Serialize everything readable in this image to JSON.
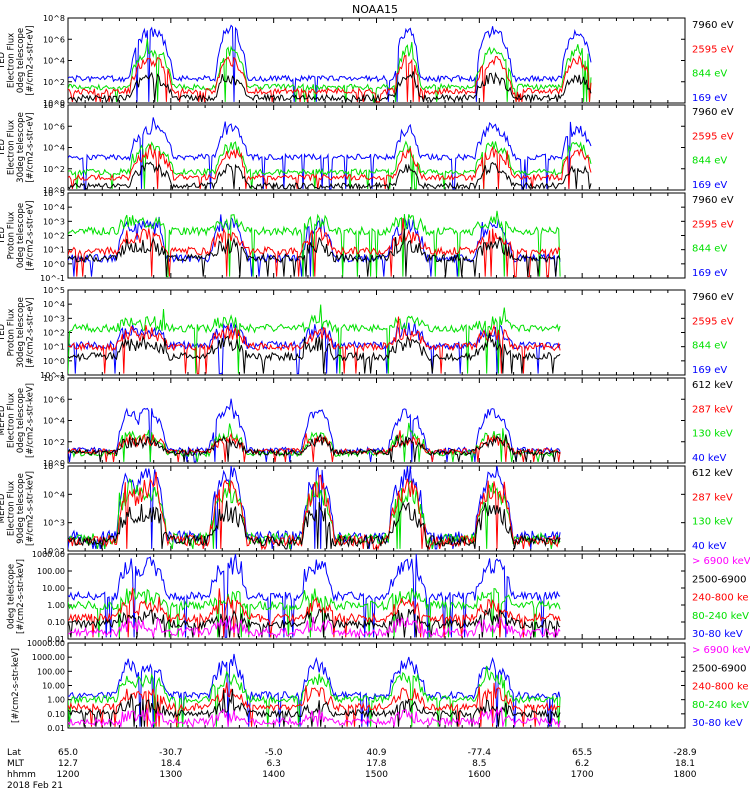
{
  "title": "NOAA15",
  "colors": {
    "black": "#000000",
    "blue": "#0000ff",
    "red": "#ff0000",
    "green": "#00e000",
    "magenta": "#ff00ff"
  },
  "chart_data": [
    {
      "type": "line",
      "panel": "TED electron 0deg",
      "ylabel": [
        "TED",
        "Electron Flux",
        "0deg telescope",
        "[#/cm2-s-str-eV]"
      ],
      "yticks": [
        "10^0",
        "10^2",
        "10^4",
        "10^6",
        "10^8"
      ],
      "ylog": [
        0,
        8
      ],
      "series": [
        {
          "name": "7960 eV",
          "color": "black"
        },
        {
          "name": "2595 eV",
          "color": "red"
        },
        {
          "name": "844 eV",
          "color": "green"
        },
        {
          "name": "169 eV",
          "color": "blue"
        }
      ],
      "levels": {
        "base": [
          0.5,
          1.1,
          1.5,
          2.3
        ],
        "peak": [
          2.3,
          4.0,
          4.9,
          6.8
        ]
      },
      "profile": "elec",
      "seed": 1
    },
    {
      "type": "line",
      "panel": "TED electron 30deg",
      "ylabel": [
        "TED",
        "Electron Flux",
        "30deg telescope",
        "[#/cm2-s-str-eV]"
      ],
      "yticks": [
        "10^0",
        "10^2",
        "10^4",
        "10^6",
        "10^8"
      ],
      "ylog": [
        0,
        8
      ],
      "series": [
        {
          "name": "7960 eV",
          "color": "black"
        },
        {
          "name": "2595 eV",
          "color": "red"
        },
        {
          "name": "844 eV",
          "color": "green"
        },
        {
          "name": "169 eV",
          "color": "blue"
        }
      ],
      "levels": {
        "base": [
          0.4,
          1.2,
          1.7,
          3.1
        ],
        "peak": [
          2.1,
          3.5,
          4.1,
          5.7
        ]
      },
      "profile": "elec",
      "seed": 2
    },
    {
      "type": "line",
      "panel": "TED proton 0deg",
      "ylabel": [
        "TED",
        "Proton Flux",
        "0deg telescope",
        "[#/cm2-s-str-eV]"
      ],
      "yticks": [
        "10^-1",
        "10^0",
        "10^1",
        "10^2",
        "10^3",
        "10^4",
        "10^5"
      ],
      "ylog": [
        -1,
        5
      ],
      "series": [
        {
          "name": "7960 eV",
          "color": "black"
        },
        {
          "name": "2595 eV",
          "color": "red"
        },
        {
          "name": "844 eV",
          "color": "green"
        },
        {
          "name": "169 eV",
          "color": "blue"
        }
      ],
      "levels": {
        "base": [
          0.4,
          0.9,
          2.3,
          0.4
        ],
        "peak": [
          1.3,
          2.0,
          3.0,
          2.8
        ]
      },
      "profile": "proton",
      "seed": 3
    },
    {
      "type": "line",
      "panel": "TED proton 30deg",
      "ylabel": [
        "TED",
        "Proton Flux",
        "30deg telescope",
        "[#/cm2-s-str-eV]"
      ],
      "yticks": [
        "10^-1",
        "10^0",
        "10^1",
        "10^2",
        "10^3",
        "10^4",
        "10^5"
      ],
      "ylog": [
        -1,
        5
      ],
      "series": [
        {
          "name": "7960 eV",
          "color": "black"
        },
        {
          "name": "2595 eV",
          "color": "red"
        },
        {
          "name": "844 eV",
          "color": "green"
        },
        {
          "name": "169 eV",
          "color": "blue"
        }
      ],
      "levels": {
        "base": [
          0.3,
          1.0,
          2.3,
          1.1
        ],
        "peak": [
          1.2,
          2.0,
          2.7,
          2.2
        ]
      },
      "profile": "proton",
      "seed": 4
    },
    {
      "type": "line",
      "panel": "MEPED electron 0deg",
      "ylabel": [
        "MEPED",
        "Electron Flux",
        "0deg telescope",
        "[#/cm2-s-str-keV]"
      ],
      "yticks": [
        "10^0",
        "10^2",
        "10^4",
        "10^6",
        "10^8"
      ],
      "ylog": [
        0,
        8
      ],
      "series": [
        {
          "name": "612 keV",
          "color": "black"
        },
        {
          "name": "287 keV",
          "color": "red"
        },
        {
          "name": "130 keV",
          "color": "green"
        },
        {
          "name": "40 keV",
          "color": "blue"
        }
      ],
      "levels": {
        "base": [
          1.0,
          1.1,
          0.9,
          1.2
        ],
        "peak": [
          2.0,
          2.2,
          2.6,
          4.8
        ]
      },
      "profile": "meped0",
      "seed": 5
    },
    {
      "type": "line",
      "panel": "MEPED electron 90deg",
      "ylabel": [
        "MEPED",
        "Electron Flux",
        "90deg telescope",
        "[#/cm2-s-str-keV]"
      ],
      "yticks": [
        "10^2",
        "10^3",
        "10^4",
        "10^5"
      ],
      "ylog": [
        1.5,
        5.6
      ],
      "series": [
        {
          "name": "612 keV",
          "color": "black"
        },
        {
          "name": "287 keV",
          "color": "red"
        },
        {
          "name": "130 keV",
          "color": "green"
        },
        {
          "name": "40 keV",
          "color": "blue"
        }
      ],
      "levels": {
        "base": [
          2.0,
          2.0,
          2.1,
          2.2
        ],
        "peak": [
          3.4,
          4.6,
          4.4,
          5.2
        ]
      },
      "profile": "meped90",
      "seed": 6
    },
    {
      "type": "line",
      "panel": "MEPED proton 0deg",
      "ylabel": [
        "0deg telescope",
        "[#/cm2-s-str-keV]"
      ],
      "yticks": [
        "0.01",
        "0.10",
        "1.00",
        "10.00",
        "100.00",
        "1000.00"
      ],
      "ylog": [
        -2.15,
        3.3
      ],
      "series": [
        {
          "name": "> 6900 keV",
          "color": "magenta"
        },
        {
          "name": "2500-6900",
          "color": "black"
        },
        {
          "name": "240-800 ke",
          "color": "red"
        },
        {
          "name": "80-240 keV",
          "color": "green"
        },
        {
          "name": "30-80 keV",
          "color": "blue"
        }
      ],
      "levels": {
        "base": [
          -1.7,
          -1.2,
          -0.8,
          0.0,
          0.6
        ],
        "peak": [
          -1.2,
          -0.7,
          0.0,
          0.6,
          2.6
        ]
      },
      "profile": "mepedp",
      "seed": 7
    },
    {
      "type": "line",
      "panel": "MEPED proton 90deg",
      "ylabel": [
        "[#/cm2-s-str-keV]"
      ],
      "yticks": [
        "0.01",
        "0.10",
        "1.00",
        "10.00",
        "100.00",
        "1000.00",
        "10000.00"
      ],
      "ylog": [
        -2.2,
        4.3
      ],
      "series": [
        {
          "name": "> 6900 keV",
          "color": "magenta"
        },
        {
          "name": "2500-6900",
          "color": "black"
        },
        {
          "name": "240-800 ke",
          "color": "red"
        },
        {
          "name": "80-240 keV",
          "color": "green"
        },
        {
          "name": "30-80 keV",
          "color": "blue"
        }
      ],
      "levels": {
        "base": [
          -1.7,
          -1.1,
          -0.6,
          0.0,
          0.3
        ],
        "peak": [
          -1.3,
          -0.5,
          0.4,
          1.6,
          2.6
        ]
      },
      "profile": "mepedp",
      "seed": 8
    }
  ],
  "xaxis": {
    "rows": [
      {
        "label": "Lat",
        "values": [
          "65.0",
          "-30.7",
          "-5.0",
          "40.9",
          "-77.4",
          "65.5",
          "-28.9"
        ]
      },
      {
        "label": "MLT",
        "values": [
          "12.7",
          "18.4",
          "6.3",
          "17.8",
          "8.5",
          "6.2",
          "18.1"
        ]
      },
      {
        "label": "hhmm",
        "values": [
          "1200",
          "1300",
          "1400",
          "1500",
          "1600",
          "1700",
          "1800"
        ]
      }
    ],
    "date": "2018 Feb 21"
  }
}
